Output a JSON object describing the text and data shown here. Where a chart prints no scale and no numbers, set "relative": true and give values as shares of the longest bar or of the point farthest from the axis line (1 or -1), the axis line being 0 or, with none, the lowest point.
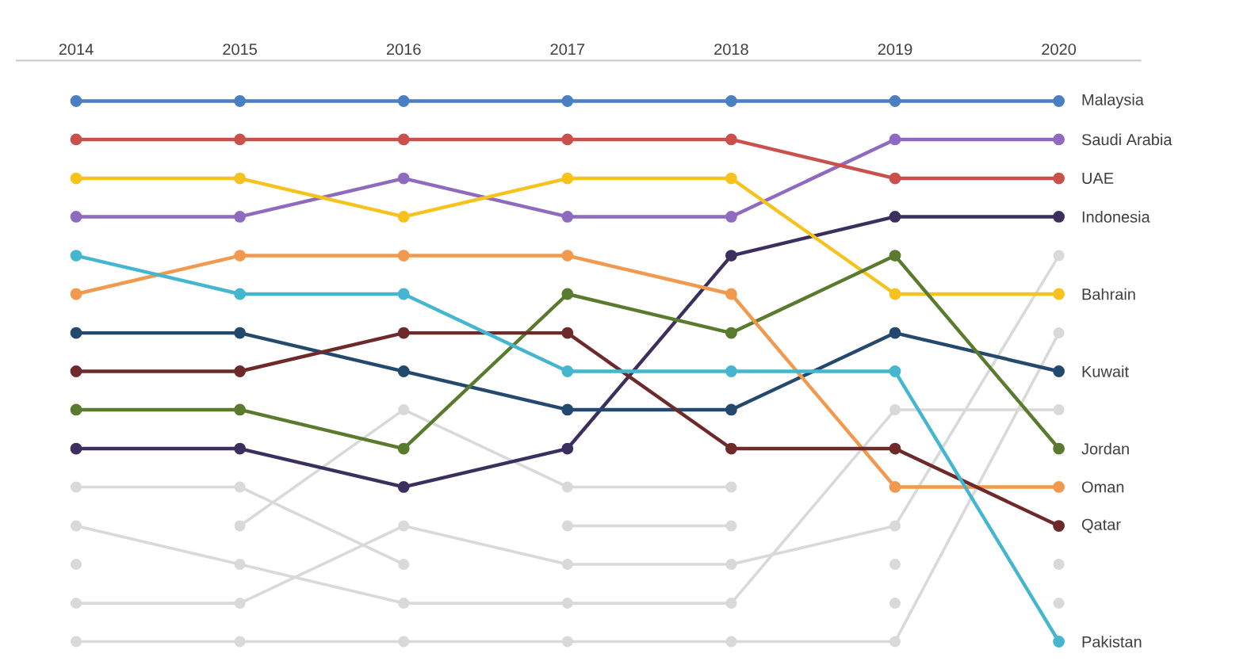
{
  "chart_data": {
    "type": "line",
    "relative": true,
    "marker": "circle",
    "x": [
      2014,
      2015,
      2016,
      2017,
      2018,
      2019,
      2020
    ],
    "xlim": [
      2014,
      2020
    ],
    "xticks": [
      2014,
      2015,
      2016,
      2017,
      2018,
      2019,
      2020
    ],
    "series": [
      {
        "color": "#d9d9d9",
        "values": [
          0.286,
          0.286,
          0.143,
          null,
          null,
          null,
          null
        ]
      },
      {
        "color": "#d9d9d9",
        "values": [
          0.214,
          0.143,
          0.071,
          0.071,
          0.071,
          0.429,
          0.429
        ]
      },
      {
        "color": "#d9d9d9",
        "values": [
          null,
          0.214,
          0.429,
          0.286,
          0.286,
          null,
          null
        ]
      },
      {
        "color": "#d9d9d9",
        "values": [
          0.071,
          0.071,
          0.214,
          0.143,
          0.143,
          0.214,
          0.714
        ]
      },
      {
        "color": "#d9d9d9",
        "values": [
          0,
          0,
          0,
          0,
          0,
          0,
          0.571
        ]
      },
      {
        "color": "#d9d9d9",
        "values": [
          null,
          null,
          null,
          0.214,
          0.214,
          null,
          null
        ]
      },
      {
        "type": "scatter",
        "color": "#d9d9d9",
        "x": [
          2014,
          2019,
          2019,
          2020,
          2020
        ],
        "values": [
          0.143,
          0.143,
          0.071,
          0.143,
          0.071
        ]
      },
      {
        "name": "Malaysia",
        "color": "#4a7fc1",
        "values": [
          1,
          1,
          1,
          1,
          1,
          1,
          1
        ]
      },
      {
        "name": "Saudi Arabia",
        "color": "#8e6bbf",
        "values": [
          0.786,
          0.786,
          0.857,
          0.786,
          0.786,
          0.929,
          0.929
        ]
      },
      {
        "name": "UAE",
        "color": "#c9504b",
        "values": [
          0.929,
          0.929,
          0.929,
          0.929,
          0.929,
          0.857,
          0.857
        ]
      },
      {
        "name": "Indonesia",
        "color": "#3b2f5e",
        "values": [
          0.357,
          0.357,
          0.286,
          0.357,
          0.714,
          0.786,
          0.786
        ]
      },
      {
        "name": "Bahrain",
        "color": "#f6c21c",
        "values": [
          0.857,
          0.857,
          0.786,
          0.857,
          0.857,
          0.643,
          0.643
        ]
      },
      {
        "name": "Kuwait",
        "color": "#23496e",
        "values": [
          0.571,
          0.571,
          0.5,
          0.429,
          0.429,
          0.571,
          0.5
        ]
      },
      {
        "name": "Jordan",
        "color": "#5a7a2e",
        "values": [
          0.429,
          0.429,
          0.357,
          0.643,
          0.571,
          0.714,
          0.357
        ]
      },
      {
        "name": "Oman",
        "color": "#f0994f",
        "values": [
          0.643,
          0.714,
          0.714,
          0.714,
          0.643,
          0.286,
          0.286
        ]
      },
      {
        "name": "Qatar",
        "color": "#6e2a2a",
        "values": [
          0.5,
          0.5,
          0.571,
          0.571,
          0.357,
          0.357,
          0.214
        ]
      },
      {
        "name": "Pakistan",
        "color": "#45b6cf",
        "values": [
          0.714,
          0.643,
          0.643,
          0.5,
          0.5,
          0.5,
          0
        ]
      }
    ]
  }
}
